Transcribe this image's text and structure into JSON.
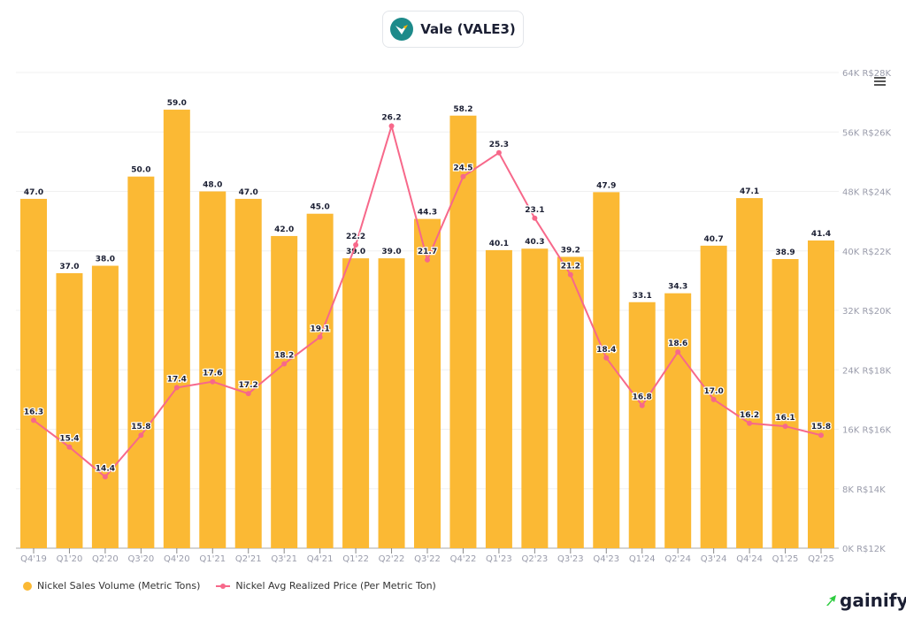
{
  "header": {
    "title": "Vale (VALE3)",
    "logo_icon": "vale-logo-icon"
  },
  "menu_icon": "hamburger-menu-icon",
  "brand": {
    "name": "gainify",
    "icon": "gainify-arrow-icon",
    "color": "#2ecc40"
  },
  "chart_data": {
    "type": "bar+line",
    "categories": [
      "Q4'19",
      "Q1'20",
      "Q2'20",
      "Q3'20",
      "Q4'20",
      "Q1'21",
      "Q2'21",
      "Q3'21",
      "Q4'21",
      "Q1'22",
      "Q2'22",
      "Q3'22",
      "Q4'22",
      "Q1'23",
      "Q2'23",
      "Q3'23",
      "Q4'23",
      "Q1'24",
      "Q2'24",
      "Q3'24",
      "Q4'24",
      "Q1'25",
      "Q2'25"
    ],
    "series": [
      {
        "name": "Nickel Sales Volume (Metric Tons)",
        "type": "bar",
        "color": "#fbb934",
        "axis": "left",
        "values": [
          47.0,
          37.0,
          38.0,
          50.0,
          59.0,
          48.0,
          47.0,
          42.0,
          45.0,
          39.0,
          39.0,
          44.3,
          58.2,
          40.1,
          40.3,
          39.2,
          47.9,
          33.1,
          34.3,
          40.7,
          47.1,
          38.9,
          41.4
        ]
      },
      {
        "name": "Nickel Avg Realized Price (Per Metric Ton)",
        "type": "line",
        "color": "#f7688a",
        "axis": "right",
        "values": [
          16.3,
          15.4,
          14.4,
          15.8,
          17.4,
          17.6,
          17.2,
          18.2,
          19.1,
          22.2,
          26.2,
          21.7,
          24.5,
          25.3,
          23.1,
          21.2,
          18.4,
          16.8,
          18.6,
          17.0,
          16.2,
          16.1,
          15.8
        ]
      }
    ],
    "y_axis_volume": {
      "range": [
        0,
        64
      ],
      "ticks": [
        "0K",
        "8K",
        "16K",
        "24K",
        "32K",
        "40K",
        "48K",
        "56K",
        "64K"
      ]
    },
    "y_axis_price": {
      "range": [
        12,
        28
      ],
      "ticks": [
        "R$12K",
        "R$14K",
        "R$16K",
        "R$18K",
        "R$20K",
        "R$22K",
        "R$24K",
        "R$26K",
        "R$28K"
      ]
    },
    "grid": true,
    "legend_placement": "bottom-left"
  }
}
